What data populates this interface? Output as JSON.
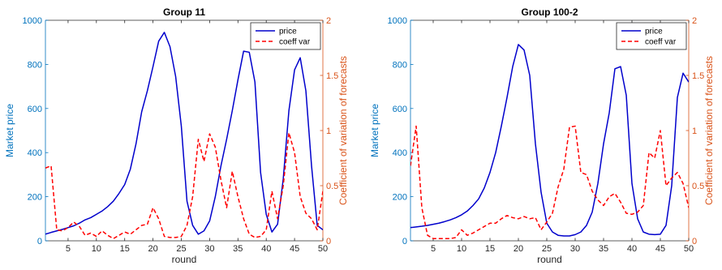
{
  "colors": {
    "left_axis": "#0072BD",
    "right_axis": "#D95319",
    "price_line": "#0000CC",
    "cv_line": "#FF0000",
    "frame": "#262626"
  },
  "chart_data": [
    {
      "type": "line",
      "title": "Group 11",
      "xlabel": "round",
      "ylabel_left": "Market price",
      "ylabel_right": "Coefficient of variation of forecasts",
      "xlim": [
        1,
        50
      ],
      "ylim_left": [
        0,
        1000
      ],
      "ylim_right": [
        0,
        2
      ],
      "xticks": [
        "5",
        "10",
        "15",
        "20",
        "25",
        "30",
        "35",
        "40",
        "45",
        "50"
      ],
      "yticks_left": [
        "0",
        "200",
        "400",
        "600",
        "800",
        "1000"
      ],
      "yticks_right": [
        "0",
        "0.5",
        "1",
        "1.5",
        "2"
      ],
      "legend": {
        "position": "top-right",
        "entries": [
          "price",
          "coeff var"
        ]
      },
      "x": [
        1,
        2,
        3,
        4,
        5,
        6,
        7,
        8,
        9,
        10,
        11,
        12,
        13,
        14,
        15,
        16,
        17,
        18,
        19,
        20,
        21,
        22,
        23,
        24,
        25,
        26,
        27,
        28,
        29,
        30,
        31,
        32,
        33,
        34,
        35,
        36,
        37,
        38,
        39,
        40,
        41,
        42,
        43,
        44,
        45,
        46,
        47,
        48,
        49,
        50
      ],
      "series": [
        {
          "name": "price",
          "axis": "left",
          "style": "solid",
          "values": [
            30,
            38,
            45,
            52,
            60,
            68,
            80,
            95,
            105,
            120,
            135,
            155,
            180,
            215,
            255,
            325,
            440,
            585,
            680,
            790,
            905,
            945,
            880,
            745,
            520,
            180,
            70,
            30,
            45,
            90,
            200,
            340,
            460,
            590,
            730,
            860,
            855,
            720,
            310,
            120,
            40,
            75,
            280,
            590,
            775,
            830,
            680,
            340,
            70,
            50
          ]
        },
        {
          "name": "coeff var",
          "axis": "right",
          "style": "dashed",
          "values": [
            0.66,
            0.68,
            0.1,
            0.09,
            0.12,
            0.17,
            0.13,
            0.05,
            0.07,
            0.04,
            0.09,
            0.05,
            0.02,
            0.05,
            0.08,
            0.06,
            0.1,
            0.14,
            0.15,
            0.3,
            0.2,
            0.04,
            0.03,
            0.03,
            0.04,
            0.14,
            0.4,
            0.92,
            0.72,
            0.97,
            0.85,
            0.55,
            0.3,
            0.63,
            0.4,
            0.2,
            0.06,
            0.03,
            0.04,
            0.1,
            0.45,
            0.2,
            0.5,
            0.98,
            0.8,
            0.4,
            0.25,
            0.2,
            0.1,
            0.45
          ]
        }
      ]
    },
    {
      "type": "line",
      "title": "Group 100-2",
      "xlabel": "round",
      "ylabel_left": "Market price",
      "ylabel_right": "Coefficient of variation of forecasts",
      "xlim": [
        1,
        50
      ],
      "ylim_left": [
        0,
        1000
      ],
      "ylim_right": [
        0,
        2
      ],
      "xticks": [
        "5",
        "10",
        "15",
        "20",
        "25",
        "30",
        "35",
        "40",
        "45",
        "50"
      ],
      "yticks_left": [
        "0",
        "200",
        "400",
        "600",
        "800",
        "1000"
      ],
      "yticks_right": [
        "0",
        "0.5",
        "1",
        "1.5",
        "2"
      ],
      "legend": {
        "position": "top-right",
        "entries": [
          "price",
          "coeff var"
        ]
      },
      "x": [
        1,
        2,
        3,
        4,
        5,
        6,
        7,
        8,
        9,
        10,
        11,
        12,
        13,
        14,
        15,
        16,
        17,
        18,
        19,
        20,
        21,
        22,
        23,
        24,
        25,
        26,
        27,
        28,
        29,
        30,
        31,
        32,
        33,
        34,
        35,
        36,
        37,
        38,
        39,
        40,
        41,
        42,
        43,
        44,
        45,
        46,
        47,
        48,
        49,
        50
      ],
      "series": [
        {
          "name": "price",
          "axis": "left",
          "style": "solid",
          "values": [
            60,
            63,
            66,
            70,
            75,
            80,
            87,
            95,
            105,
            118,
            135,
            160,
            190,
            240,
            310,
            400,
            520,
            650,
            790,
            890,
            865,
            750,
            440,
            220,
            80,
            40,
            25,
            22,
            22,
            28,
            40,
            70,
            130,
            260,
            440,
            580,
            780,
            790,
            660,
            260,
            100,
            40,
            30,
            28,
            30,
            70,
            250,
            650,
            760,
            720
          ]
        },
        {
          "name": "coeff var",
          "axis": "right",
          "style": "dashed",
          "values": [
            0.68,
            1.04,
            0.3,
            0.05,
            0.02,
            0.02,
            0.02,
            0.02,
            0.03,
            0.1,
            0.05,
            0.07,
            0.1,
            0.13,
            0.16,
            0.16,
            0.2,
            0.23,
            0.21,
            0.2,
            0.22,
            0.2,
            0.21,
            0.1,
            0.17,
            0.25,
            0.49,
            0.65,
            1.03,
            1.04,
            0.62,
            0.6,
            0.45,
            0.37,
            0.32,
            0.4,
            0.43,
            0.35,
            0.25,
            0.24,
            0.26,
            0.32,
            0.8,
            0.75,
            1.0,
            0.5,
            0.57,
            0.62,
            0.52,
            0.3
          ]
        }
      ]
    }
  ]
}
